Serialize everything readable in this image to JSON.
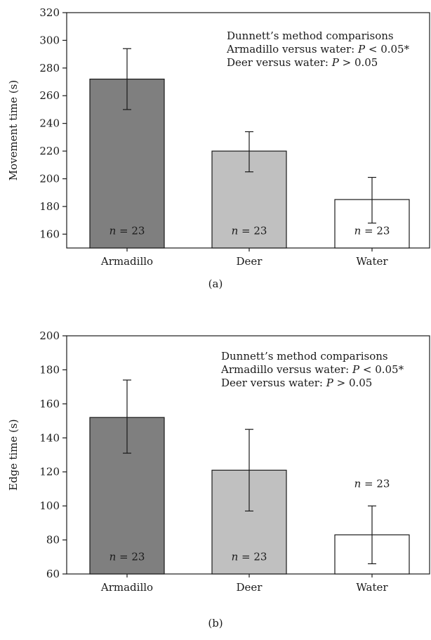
{
  "chart_data": [
    {
      "type": "bar",
      "panel_label": "(a)",
      "categories": [
        "Armadillo",
        "Deer",
        "Water"
      ],
      "values": [
        272,
        220,
        185
      ],
      "error_upper": [
        294,
        234,
        201
      ],
      "error_lower": [
        250,
        205,
        168
      ],
      "bar_colors": [
        "#7f7f7f",
        "#c0c0c0",
        "#ffffff"
      ],
      "n_labels": [
        "n = 23",
        "n = 23",
        "n = 23"
      ],
      "n_label_y": [
        160,
        160,
        160
      ],
      "ylabel": "Movement time (s)",
      "ylim": [
        150,
        320
      ],
      "yticks": [
        160,
        180,
        200,
        220,
        240,
        260,
        280,
        300,
        320
      ],
      "annotation": {
        "title": "Dunnett’s method comparisons",
        "line1_prefix": "Armadillo versus water: ",
        "line1_p": "P",
        "line1_suffix": " < 0.05*",
        "line2_prefix": "Deer versus water: ",
        "line2_p": "P",
        "line2_suffix": " > 0.05"
      },
      "grid": false
    },
    {
      "type": "bar",
      "panel_label": "(b)",
      "categories": [
        "Armadillo",
        "Deer",
        "Water"
      ],
      "values": [
        152,
        121,
        83
      ],
      "error_upper": [
        174,
        145,
        100
      ],
      "error_lower": [
        131,
        97,
        66
      ],
      "bar_colors": [
        "#7f7f7f",
        "#c0c0c0",
        "#ffffff"
      ],
      "n_labels": [
        "n = 23",
        "n = 23",
        "n = 23"
      ],
      "n_label_y": [
        68,
        68,
        111
      ],
      "ylabel": "Edge time (s)",
      "ylim": [
        60,
        200
      ],
      "yticks": [
        60,
        80,
        100,
        120,
        140,
        160,
        180,
        200
      ],
      "annotation": {
        "title": "Dunnett’s method comparisons",
        "line1_prefix": "Armadillo versus water: ",
        "line1_p": "P",
        "line1_suffix": " < 0.05*",
        "line2_prefix": "Deer versus water: ",
        "line2_p": "P",
        "line2_suffix": " > 0.05"
      },
      "grid": false
    }
  ]
}
